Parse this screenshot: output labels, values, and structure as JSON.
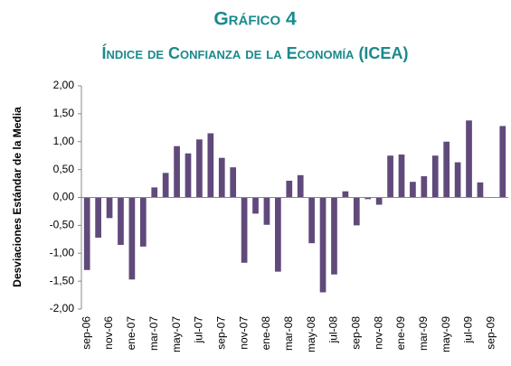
{
  "chart_data": {
    "type": "bar",
    "title": "Gráfico 4",
    "subtitle": "Índice de Confianza de la Economía (ICEA)",
    "y_label": "Desviaciones Estándar de la Media",
    "color": "#604a7b",
    "categories": [
      "sep-06",
      null,
      "nov-06",
      null,
      "ene-07",
      null,
      "mar-07",
      null,
      "may-07",
      null,
      "jul-07",
      null,
      "sep-07",
      null,
      "nov-07",
      null,
      "ene-08",
      null,
      "mar-08",
      null,
      "may-08",
      null,
      "jul-08",
      null,
      "sep-08",
      null,
      "nov-08",
      null,
      "ene-09",
      null,
      "mar-09",
      null,
      "may-09",
      null,
      "jul-09",
      null,
      "sep-09",
      null
    ],
    "values": [
      -1.3,
      -0.72,
      -0.37,
      -0.85,
      -1.47,
      -0.88,
      0.18,
      0.44,
      0.92,
      0.79,
      1.04,
      1.15,
      0.71,
      0.54,
      -1.17,
      -0.29,
      -0.49,
      -1.33,
      0.3,
      0.4,
      -0.82,
      -1.7,
      -1.38,
      0.11,
      -0.5,
      -0.03,
      -0.13,
      0.75,
      0.77,
      0.28,
      0.38,
      0.75,
      1.0,
      0.63,
      1.38,
      0.27,
      null,
      1.28
    ],
    "ylim": [
      -2,
      2
    ],
    "yticks": [
      {
        "value": -2,
        "label": "-2,00"
      },
      {
        "value": -1.5,
        "label": "-1,50"
      },
      {
        "value": -1,
        "label": "-1,00"
      },
      {
        "value": -0.5,
        "label": "-0,50"
      },
      {
        "value": 0,
        "label": "0,00"
      },
      {
        "value": 0.5,
        "label": "0,50"
      },
      {
        "value": 1,
        "label": "1,00"
      },
      {
        "value": 1.5,
        "label": "1,50"
      },
      {
        "value": 2,
        "label": "2,00"
      }
    ]
  }
}
